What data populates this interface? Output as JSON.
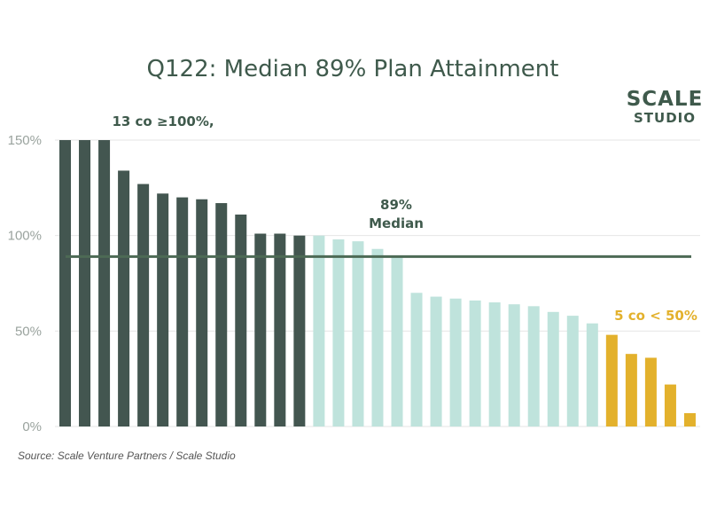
{
  "chart_data": {
    "type": "bar",
    "title": "Q122: Median 89% Plan Attainment",
    "xlabel": "",
    "ylabel": "",
    "ylim": [
      0,
      150
    ],
    "yticks": [
      "0%",
      "50%",
      "100%",
      "150%"
    ],
    "grid": true,
    "median_value": 89,
    "median_label_line1": "89%",
    "median_label_line2": "Median",
    "annotation_top": "13 co ≥100%,",
    "annotation_bottom": "5 co < 50%",
    "source": "Source: Scale Venture Partners / Scale Studio",
    "series": [
      {
        "values": [
          150,
          150,
          150,
          134,
          127,
          122,
          120,
          119,
          117,
          111,
          101,
          101,
          100
        ],
        "color": "#435650"
      },
      {
        "values": [
          100,
          98,
          97,
          93,
          89,
          70,
          68,
          67,
          66,
          65,
          64,
          63,
          60,
          58,
          54
        ],
        "color": "#bfe3dc"
      },
      {
        "values": [
          48,
          38,
          36,
          22,
          7
        ],
        "color": "#e3b12c"
      }
    ]
  },
  "logo": {
    "top": "SCALE",
    "bottom": "STUDIO"
  },
  "colors": {
    "dark": "#435650",
    "light": "#bfe3dc",
    "gold": "#e3b12c",
    "median_line": "#4d6a55",
    "grid": "#e6e6e6"
  }
}
